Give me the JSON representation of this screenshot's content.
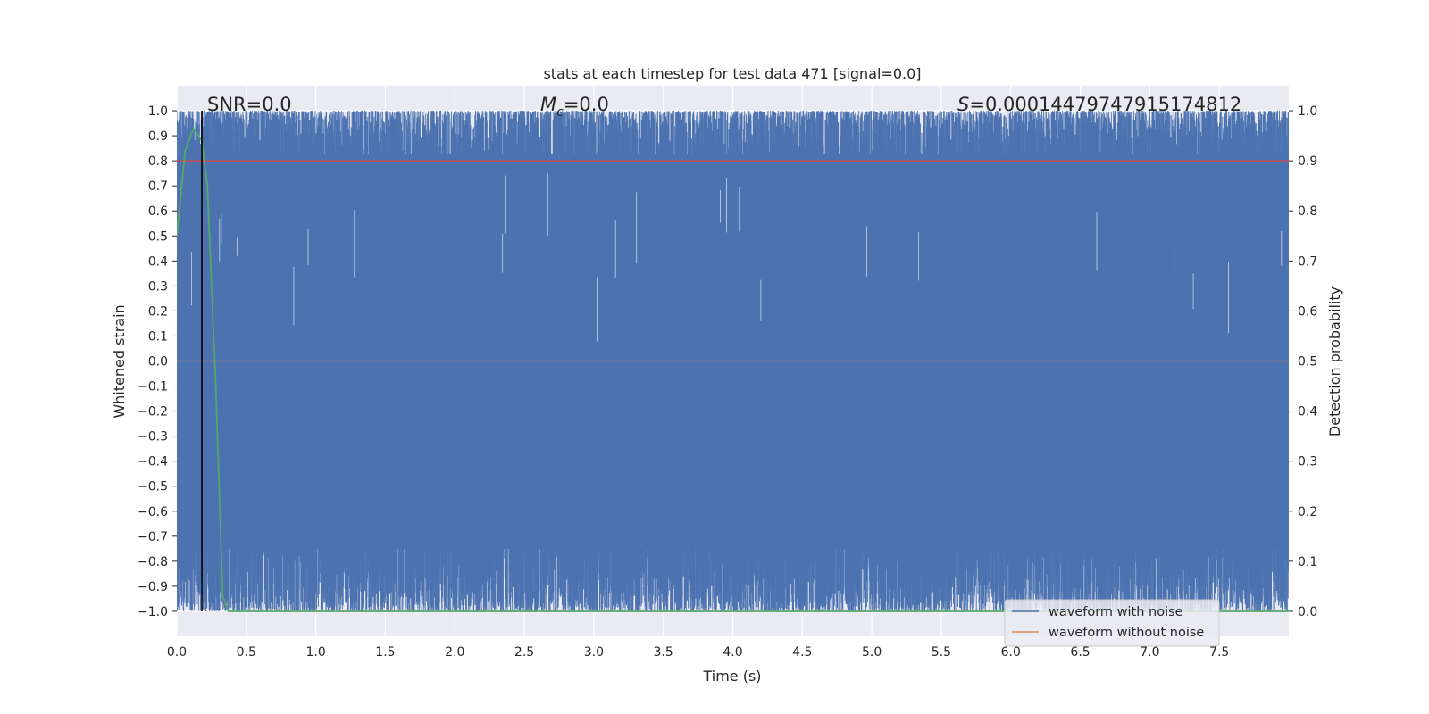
{
  "chart_data": {
    "type": "line",
    "title": "stats at each timestep for test data 471 [signal=0.0]",
    "xlabel": "Time (s)",
    "ylabel_left": "Whitened strain",
    "ylabel_right": "Detection probability",
    "xlim": [
      0.0,
      8.0
    ],
    "ylim_left": [
      -1.1,
      1.1
    ],
    "ylim_right": [
      -0.05,
      1.05
    ],
    "xticks": [
      "0.0",
      "0.5",
      "1.0",
      "1.5",
      "2.0",
      "2.5",
      "3.0",
      "3.5",
      "4.0",
      "4.5",
      "5.0",
      "5.5",
      "6.0",
      "6.5",
      "7.0",
      "7.5"
    ],
    "yticks_left": [
      "1.0",
      "0.9",
      "0.8",
      "0.7",
      "0.6",
      "0.5",
      "0.4",
      "0.3",
      "0.2",
      "0.1",
      "0.0",
      "−0.1",
      "−0.2",
      "−0.3",
      "−0.4",
      "−0.5",
      "−0.6",
      "−0.7",
      "−0.8",
      "−0.9",
      "−1.0"
    ],
    "yticks_right": [
      "1.0",
      "0.9",
      "0.8",
      "0.7",
      "0.6",
      "0.5",
      "0.4",
      "0.3",
      "0.2",
      "0.1",
      "0.0"
    ],
    "grid": true,
    "legend_position": "lower-right",
    "annotations": {
      "snr": "SNR=0.0",
      "mc_symbol": "M",
      "mc_subscript": "c",
      "mc_value": "=0.0",
      "s_symbol": "S",
      "s_value": "=0.00014479747915174812"
    },
    "series": [
      {
        "name": "waveform with noise",
        "color": "#4c72b0",
        "description_range": [
          -1.0,
          1.0
        ]
      },
      {
        "name": "waveform without noise",
        "color": "#dd8452",
        "constant_value": 0.0
      },
      {
        "axis": "right",
        "color": "#55a868",
        "x": [
          0.0,
          0.06,
          0.12,
          0.18,
          0.22,
          0.28,
          0.33,
          0.37,
          0.45,
          1.0,
          2.0,
          3.0,
          4.0,
          5.0,
          6.0,
          7.0,
          8.0
        ],
        "y": [
          0.75,
          0.92,
          0.965,
          0.94,
          0.85,
          0.45,
          0.03,
          0.0,
          0.0,
          0.0,
          0.0,
          0.0,
          0.0,
          0.0,
          0.0,
          0.0,
          0.0
        ]
      },
      {
        "axis": "right",
        "color": "#c44e52",
        "constant_value": 0.9
      }
    ],
    "vline_x": 0.18,
    "vline_color": "#000000"
  }
}
